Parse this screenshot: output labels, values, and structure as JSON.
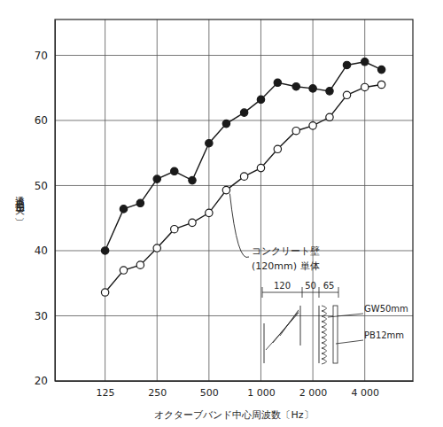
{
  "chart_data": {
    "type": "line",
    "x_label": "オクターブバンド中心周波数〔Hz〕",
    "y_label": "透 過 損 失 〔dB〕",
    "log": "x",
    "grid": true,
    "xlim": [
      64,
      7600
    ],
    "ylim": [
      20,
      75.5
    ],
    "xticks": [
      125,
      250,
      500,
      {
        "value": 1000,
        "label": "1 000"
      },
      {
        "value": 2000,
        "label": "2 000"
      },
      {
        "value": 4000,
        "label": "4 000"
      }
    ],
    "yticks": [
      20,
      30,
      40,
      50,
      60,
      70
    ],
    "x": [
      125,
      160,
      200,
      250,
      315,
      400,
      500,
      630,
      800,
      1000,
      1250,
      1600,
      2000,
      2500,
      3150,
      4000,
      5000
    ],
    "series": [
      {
        "color": "#1a1a1a",
        "marker": "filled-circle",
        "line_style": "solid",
        "values": [
          40.0,
          46.4,
          47.3,
          51.0,
          52.2,
          50.8,
          56.5,
          59.5,
          61.2,
          63.2,
          65.8,
          65.2,
          64.9,
          64.5,
          68.5,
          69.0,
          67.8
        ]
      },
      {
        "color": "#1a1a1a",
        "marker": "open-circle",
        "line_style": "solid",
        "values": [
          33.6,
          37.0,
          37.8,
          40.4,
          43.3,
          44.3,
          45.8,
          49.3,
          51.4,
          52.7,
          55.6,
          58.4,
          59.2,
          60.5,
          63.9,
          65.1,
          65.5
        ]
      }
    ],
    "annotations": [
      "コンクリート壁",
      "(120mm) 単体"
    ],
    "inset": {
      "dimensions": [
        120,
        50,
        65
      ],
      "labels": [
        "GW50mm",
        "PB12mm"
      ]
    }
  }
}
